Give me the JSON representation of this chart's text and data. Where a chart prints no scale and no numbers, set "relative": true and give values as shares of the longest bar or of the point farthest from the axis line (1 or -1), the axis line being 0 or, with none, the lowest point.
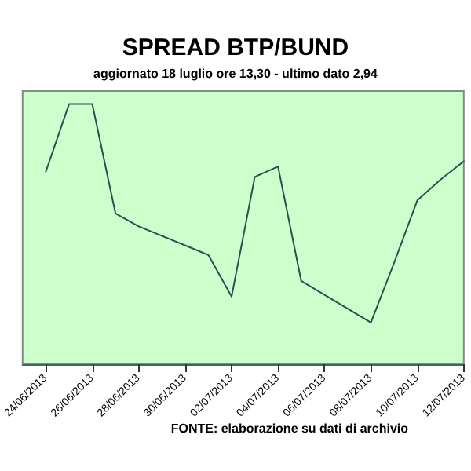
{
  "chart_data": {
    "type": "line",
    "title": "SPREAD BTP/BUND",
    "subtitle": "aggiornato 18 luglio ore 13,30 - ultimo dato 2,94",
    "annotations": [
      "FONTE: elaborazione su dati di archivio"
    ],
    "relative": true,
    "marker": "none",
    "line_style": "solid",
    "xlim": [
      "2013-06-23",
      "2013-07-12"
    ],
    "xticks": [
      {
        "value": "2013-06-24",
        "label": "24/06/2013"
      },
      {
        "value": "2013-06-26",
        "label": "26/06/2013"
      },
      {
        "value": "2013-06-28",
        "label": "28/06/2013"
      },
      {
        "value": "2013-06-30",
        "label": "30/06/2013"
      },
      {
        "value": "2013-07-02",
        "label": "02/07/2013"
      },
      {
        "value": "2013-07-04",
        "label": "04/07/2013"
      },
      {
        "value": "2013-07-06",
        "label": "06/07/2013"
      },
      {
        "value": "2013-07-08",
        "label": "08/07/2013"
      },
      {
        "value": "2013-07-10",
        "label": "10/07/2013"
      },
      {
        "value": "2013-07-12",
        "label": "12/07/2013"
      }
    ],
    "x": [
      "2013-06-24",
      "2013-06-25",
      "2013-06-26",
      "2013-06-27",
      "2013-06-28",
      "2013-07-01",
      "2013-07-02",
      "2013-07-03",
      "2013-07-04",
      "2013-07-05",
      "2013-07-08",
      "2013-07-09",
      "2013-07-10",
      "2013-07-11",
      "2013-07-12"
    ],
    "series": [
      {
        "color": "#2f4f4f",
        "values": [
          0.74,
          1,
          1,
          0.58,
          0.53,
          0.42,
          0.26,
          0.72,
          0.76,
          0.32,
          0.16,
          0.39,
          0.63,
          0.71,
          0.78
        ]
      }
    ]
  }
}
